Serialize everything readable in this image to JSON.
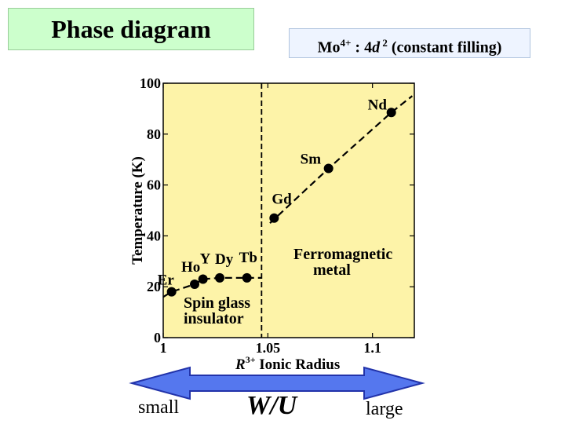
{
  "slide": {
    "title": "Phase diagram",
    "subtitle_prefix": "Mo",
    "subtitle_sup1": "4+",
    "subtitle_mid": " : 4",
    "subtitle_d": "d",
    "subtitle_sup2": " 2",
    "subtitle_suffix": " (constant filling)",
    "arrow_left_label": "small",
    "arrow_center_label": "W/U",
    "arrow_right_label": "large"
  },
  "colors": {
    "plot_background": "#fdf3a8",
    "title_background": "#ccffcc",
    "arrow_fill": "#5577ee",
    "arrow_stroke": "#2233aa"
  },
  "chart_data": {
    "type": "scatter",
    "xlabel_sup": "3+",
    "xlabel_prefix": "R",
    "xlabel_suffix": " Ionic Radius",
    "ylabel": "Temperature (K)",
    "xlim": [
      1.0,
      1.12
    ],
    "ylim": [
      0,
      100
    ],
    "xticks": [
      1.0,
      1.05,
      1.1
    ],
    "xtick_labels": [
      "1",
      "1.05",
      "1.1"
    ],
    "yticks": [
      0,
      20,
      40,
      60,
      80,
      100
    ],
    "ytick_labels": [
      "0",
      "20",
      "40",
      "60",
      "80",
      "100"
    ],
    "phase_boundary_x": 1.047,
    "points": [
      {
        "label": "Er",
        "x": 1.004,
        "y": 18
      },
      {
        "label": "Ho",
        "x": 1.015,
        "y": 21
      },
      {
        "label": "Y",
        "x": 1.019,
        "y": 23
      },
      {
        "label": "Dy",
        "x": 1.027,
        "y": 23.5
      },
      {
        "label": "Tb",
        "x": 1.04,
        "y": 23.5
      },
      {
        "label": "Gd",
        "x": 1.053,
        "y": 47
      },
      {
        "label": "Sm",
        "x": 1.079,
        "y": 66.5
      },
      {
        "label": "Nd",
        "x": 1.109,
        "y": 88.5
      }
    ],
    "trend_lines": [
      {
        "x": [
          1.0,
          1.004,
          1.015,
          1.019,
          1.027,
          1.04,
          1.047
        ],
        "y": [
          16,
          18,
          21,
          23,
          23.5,
          23.5,
          23.5
        ]
      },
      {
        "x": [
          1.051,
          1.079,
          1.109,
          1.119
        ],
        "y": [
          45,
          66.5,
          88.5,
          95
        ]
      }
    ],
    "regions": [
      {
        "line1": "Spin glass",
        "line2": "insulator"
      },
      {
        "line1": "Ferromagnetic",
        "line2": "metal"
      }
    ]
  }
}
